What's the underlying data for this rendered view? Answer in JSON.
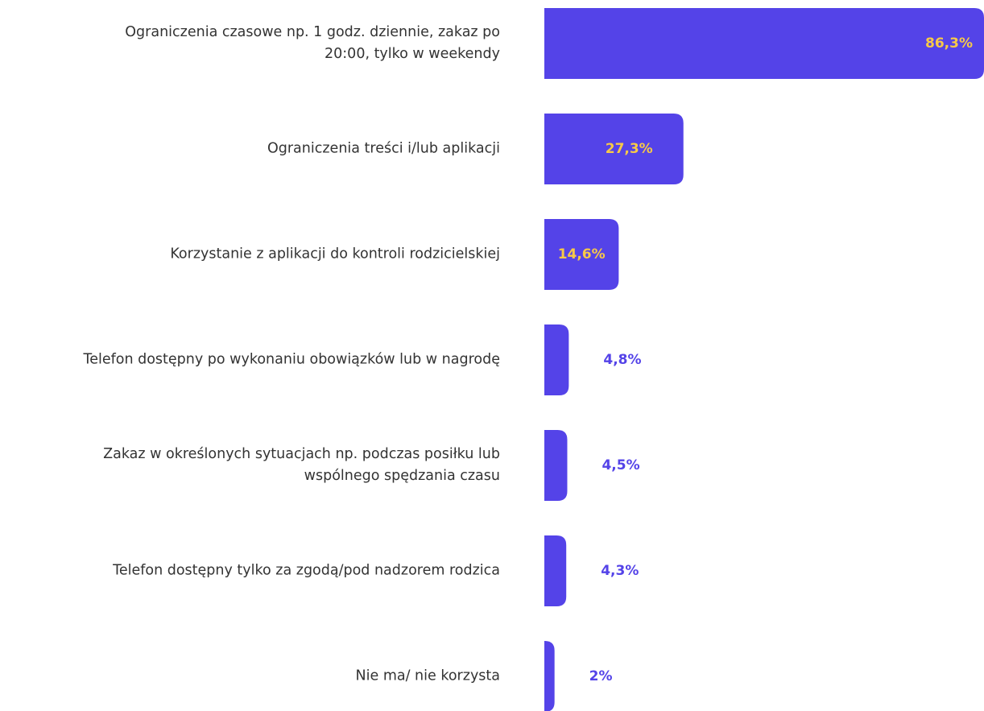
{
  "chart_data": {
    "type": "barh",
    "categories": [
      "Ograniczenia czasowe np. 1 godz. dziennie, zakaz po 20:00, tylko w weekendy",
      "Ograniczenia treści i/lub aplikacji",
      "Korzystanie z aplikacji do kontroli rodzicielskiej",
      "Telefon dostępny po wykonaniu obowiązków lub w nagrodę",
      "Zakaz w określonych sytuacjach np. podczas posiłku lub wspólnego spędzania czasu",
      "Telefon dostępny tylko za zgodą/pod nadzorem rodzica",
      "Nie ma/ nie korzysta"
    ],
    "values": [
      86.3,
      27.3,
      14.6,
      4.8,
      4.5,
      4.3,
      2
    ],
    "value_labels": [
      "86,3%",
      "27,3%",
      "14,6%",
      "4,8%",
      "4,5%",
      "4,3%",
      "2%"
    ],
    "color": "#5443e8"
  }
}
